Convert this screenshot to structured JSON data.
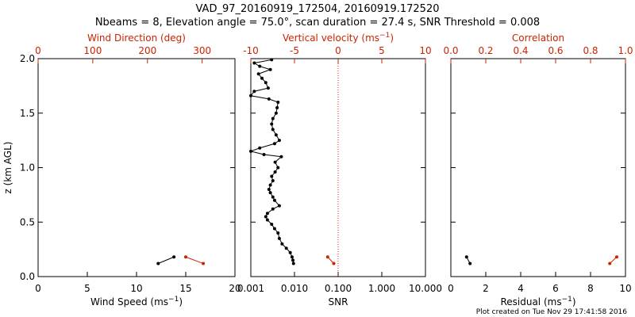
{
  "colors": {
    "black": "#000000",
    "red": "#cc2200"
  },
  "header": {
    "title_line1": "VAD_97_20160919_172504, 20160919.172520",
    "title_line2": "Nbeams = 8, Elevation angle = 75.0°, scan duration = 27.4 s, SNR Threshold = 0.008"
  },
  "footer": {
    "plot_created": "Plot created on Tue Nov 29 17:41:58 2016"
  },
  "chart_data": [
    {
      "type": "line",
      "panel": "left",
      "bottom_axis": {
        "label": "Wind Speed (ms",
        "label_sup": "−1",
        "label_tail": ")",
        "range": [
          0,
          20
        ],
        "ticks": [
          0,
          5,
          10,
          15,
          20
        ]
      },
      "top_axis": {
        "label": "Wind Direction (deg)",
        "range": [
          0,
          360
        ],
        "ticks": [
          0,
          100,
          200,
          300
        ],
        "color": "#cc2200"
      },
      "y_axis": {
        "label": "z (km AGL)",
        "range": [
          0,
          2.0
        ],
        "ticks": [
          "0.0",
          "0.5",
          "1.0",
          "1.5",
          "2.0"
        ]
      },
      "series": [
        {
          "axis": "bottom",
          "color": "#000000",
          "points": [
            [
              12.2,
              0.12
            ],
            [
              13.8,
              0.18
            ]
          ]
        },
        {
          "axis": "top",
          "color": "#cc2200",
          "points": [
            [
              270,
              0.18
            ],
            [
              302,
              0.12
            ]
          ]
        }
      ]
    },
    {
      "type": "line",
      "panel": "middle",
      "bottom_axis": {
        "label": "SNR",
        "scale": "log",
        "range": [
          0.001,
          10
        ],
        "ticks": [
          "0.001",
          "0.010",
          "0.100",
          "1.000",
          "10.000"
        ]
      },
      "top_axis": {
        "label": "Vertical velocity (ms",
        "label_sup": "−1",
        "label_tail": ")",
        "range": [
          -10,
          10
        ],
        "ticks": [
          -10,
          -5,
          0,
          5,
          10
        ],
        "color": "#cc2200",
        "reference_line": 0
      },
      "y_axis": {
        "range": [
          0,
          2.0
        ]
      },
      "series": [
        {
          "axis": "bottom",
          "color": "#000000",
          "points": [
            [
              0.0095,
              0.12
            ],
            [
              0.0092,
              0.15
            ],
            [
              0.0088,
              0.18
            ],
            [
              0.008,
              0.22
            ],
            [
              0.0065,
              0.26
            ],
            [
              0.0052,
              0.3
            ],
            [
              0.0045,
              0.35
            ],
            [
              0.0042,
              0.4
            ],
            [
              0.0035,
              0.44
            ],
            [
              0.003,
              0.48
            ],
            [
              0.0024,
              0.52
            ],
            [
              0.0022,
              0.55
            ],
            [
              0.0024,
              0.58
            ],
            [
              0.0032,
              0.62
            ],
            [
              0.0045,
              0.65
            ],
            [
              0.0035,
              0.7
            ],
            [
              0.0032,
              0.73
            ],
            [
              0.0028,
              0.77
            ],
            [
              0.0026,
              0.8
            ],
            [
              0.0028,
              0.84
            ],
            [
              0.0032,
              0.88
            ],
            [
              0.003,
              0.92
            ],
            [
              0.0036,
              0.96
            ],
            [
              0.0042,
              1.0
            ],
            [
              0.0036,
              1.05
            ],
            [
              0.005,
              1.1
            ],
            [
              0.002,
              1.12
            ],
            [
              0.001,
              1.15
            ],
            [
              0.0016,
              1.18
            ],
            [
              0.0035,
              1.22
            ],
            [
              0.0045,
              1.25
            ],
            [
              0.0038,
              1.3
            ],
            [
              0.0032,
              1.35
            ],
            [
              0.003,
              1.4
            ],
            [
              0.0032,
              1.45
            ],
            [
              0.0038,
              1.5
            ],
            [
              0.004,
              1.55
            ],
            [
              0.0042,
              1.6
            ],
            [
              0.0026,
              1.63
            ],
            [
              0.001,
              1.66
            ],
            [
              0.0012,
              1.7
            ],
            [
              0.0025,
              1.73
            ],
            [
              0.0022,
              1.78
            ],
            [
              0.0018,
              1.82
            ],
            [
              0.0015,
              1.86
            ],
            [
              0.0028,
              1.9
            ],
            [
              0.0016,
              1.93
            ],
            [
              0.0012,
              1.96
            ],
            [
              0.003,
              1.99
            ]
          ]
        },
        {
          "axis": "top",
          "color": "#cc2200",
          "points": [
            [
              -1.2,
              0.18
            ],
            [
              -0.5,
              0.12
            ]
          ]
        }
      ]
    },
    {
      "type": "line",
      "panel": "right",
      "bottom_axis": {
        "label": "Residual (ms",
        "label_sup": "−1",
        "label_tail": ")",
        "range": [
          0,
          10
        ],
        "ticks": [
          0,
          2,
          4,
          6,
          8,
          10
        ]
      },
      "top_axis": {
        "label": "Correlation",
        "range": [
          0,
          1.0
        ],
        "ticks": [
          "0.0",
          "0.2",
          "0.4",
          "0.6",
          "0.8",
          "1.0"
        ],
        "color": "#cc2200"
      },
      "y_axis": {
        "range": [
          0,
          2.0
        ]
      },
      "series": [
        {
          "axis": "bottom",
          "color": "#000000",
          "points": [
            [
              0.9,
              0.18
            ],
            [
              1.1,
              0.12
            ]
          ]
        },
        {
          "axis": "top",
          "color": "#cc2200",
          "points": [
            [
              0.95,
              0.18
            ],
            [
              0.91,
              0.12
            ]
          ]
        }
      ]
    }
  ]
}
